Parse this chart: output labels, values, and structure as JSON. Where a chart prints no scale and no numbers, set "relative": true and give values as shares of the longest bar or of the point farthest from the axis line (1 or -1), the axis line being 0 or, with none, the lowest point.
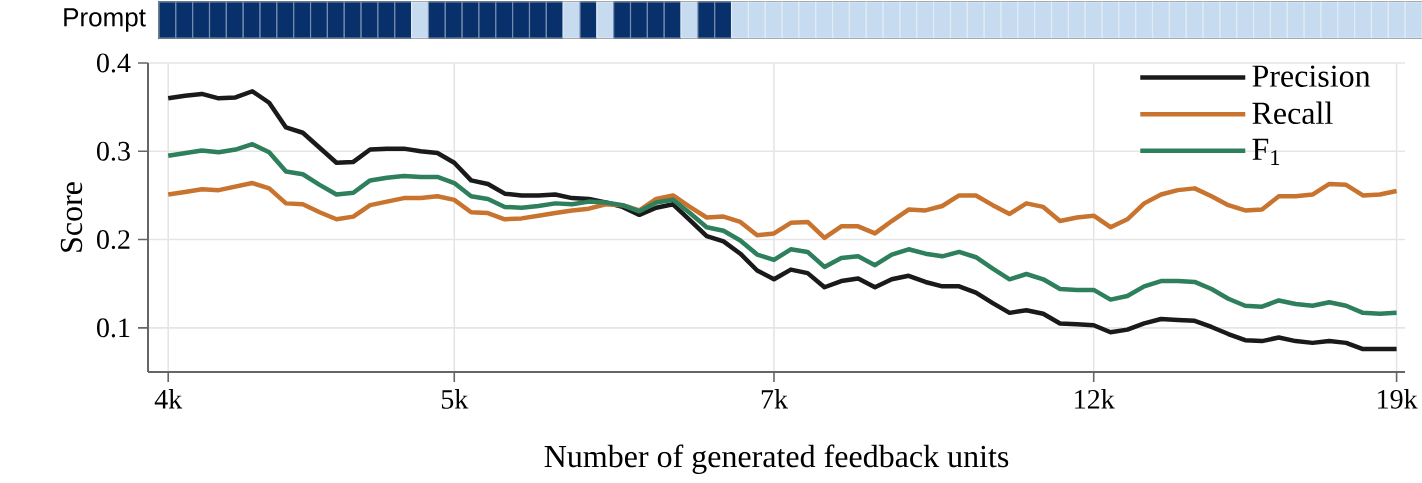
{
  "chart_data": [
    {
      "type": "bar",
      "relative": true,
      "ylabel": "Prompt",
      "categories": [
        null,
        null,
        null,
        null,
        null,
        null,
        null,
        null,
        null,
        null,
        null,
        null,
        null,
        null,
        null,
        null,
        null,
        null,
        null,
        null,
        null,
        null,
        null,
        null,
        null,
        null,
        null,
        null,
        null,
        null,
        null,
        null,
        null,
        null,
        null,
        null,
        null,
        null,
        null,
        null,
        null,
        null,
        null,
        null,
        null,
        null,
        null,
        null,
        null,
        null,
        null,
        null,
        null,
        null,
        null,
        null,
        null,
        null,
        null,
        null,
        null,
        null,
        null,
        null,
        null,
        null,
        null,
        null,
        null,
        null,
        null,
        null,
        null,
        null,
        null
      ],
      "values": [
        1,
        1,
        1,
        1,
        1,
        1,
        1,
        1,
        1,
        1,
        1,
        1,
        1,
        1,
        1,
        1,
        1,
        1,
        1,
        1,
        1,
        1,
        1,
        1,
        1,
        1,
        1,
        1,
        1,
        1,
        1,
        1,
        1,
        1,
        1,
        1,
        1,
        1,
        1,
        1,
        1,
        1,
        1,
        1,
        1,
        1,
        1,
        1,
        1,
        1,
        1,
        1,
        1,
        1,
        1,
        1,
        1,
        1,
        1,
        1,
        1,
        1,
        1,
        1,
        1,
        1,
        1,
        1,
        1,
        1,
        1,
        1,
        1,
        1,
        1
      ],
      "colors": [
        "#08306b",
        "#08306b",
        "#08306b",
        "#08306b",
        "#08306b",
        "#08306b",
        "#08306b",
        "#08306b",
        "#08306b",
        "#08306b",
        "#08306b",
        "#08306b",
        "#08306b",
        "#08306b",
        "#08306b",
        "#c6dbef",
        "#08306b",
        "#08306b",
        "#08306b",
        "#08306b",
        "#08306b",
        "#08306b",
        "#08306b",
        "#08306b",
        "#c6dbef",
        "#08306b",
        "#c6dbef",
        "#08306b",
        "#08306b",
        "#08306b",
        "#08306b",
        "#c6dbef",
        "#08306b",
        "#08306b",
        "#c6dbef",
        "#c6dbef",
        "#c6dbef",
        "#c6dbef",
        "#c6dbef",
        "#c6dbef",
        "#c6dbef",
        "#c6dbef",
        "#c6dbef",
        "#c6dbef",
        "#c6dbef",
        "#c6dbef",
        "#c6dbef",
        "#c6dbef",
        "#c6dbef",
        "#c6dbef",
        "#c6dbef",
        "#c6dbef",
        "#c6dbef",
        "#c6dbef",
        "#c6dbef",
        "#c6dbef",
        "#c6dbef",
        "#c6dbef",
        "#c6dbef",
        "#c6dbef",
        "#c6dbef",
        "#c6dbef",
        "#c6dbef",
        "#c6dbef",
        "#c6dbef",
        "#c6dbef",
        "#c6dbef",
        "#c6dbef",
        "#c6dbef",
        "#c6dbef",
        "#c6dbef",
        "#c6dbef",
        "#c6dbef",
        "#c6dbef",
        "#c6dbef"
      ]
    },
    {
      "type": "line",
      "xlabel": "Number of generated feedback units",
      "ylabel": "Score",
      "categories": [
        "4k",
        null,
        null,
        null,
        null,
        null,
        null,
        null,
        null,
        null,
        null,
        null,
        null,
        null,
        null,
        null,
        null,
        "5k",
        null,
        null,
        null,
        null,
        null,
        null,
        null,
        null,
        null,
        null,
        null,
        null,
        null,
        null,
        null,
        null,
        null,
        null,
        "7k",
        null,
        null,
        null,
        null,
        null,
        null,
        null,
        null,
        null,
        null,
        null,
        null,
        null,
        null,
        null,
        null,
        null,
        null,
        "12k",
        null,
        null,
        null,
        null,
        null,
        null,
        null,
        null,
        null,
        null,
        null,
        null,
        null,
        null,
        null,
        null,
        null,
        "19k"
      ],
      "ylim": [
        0.05,
        0.4
      ],
      "yticks": [
        0.1,
        0.2,
        0.3,
        0.4
      ],
      "grid": true,
      "legend": "top right",
      "line_style": "solid",
      "marker": "none",
      "series": [
        {
          "name": "Precision",
          "color": "#1a1a1a",
          "values": [
            0.36,
            0.363,
            0.365,
            0.36,
            0.361,
            0.368,
            0.355,
            0.327,
            0.321,
            0.304,
            0.287,
            0.288,
            0.302,
            0.303,
            0.303,
            0.3,
            0.298,
            0.287,
            0.267,
            0.263,
            0.252,
            0.25,
            0.25,
            0.251,
            0.247,
            0.246,
            0.242,
            0.237,
            0.228,
            0.236,
            0.24,
            0.222,
            0.204,
            0.198,
            0.184,
            0.165,
            0.155,
            0.166,
            0.162,
            0.146,
            0.153,
            0.156,
            0.146,
            0.155,
            0.159,
            0.152,
            0.147,
            0.147,
            0.14,
            0.128,
            0.117,
            0.12,
            0.116,
            0.105,
            0.104,
            0.103,
            0.095,
            0.098,
            0.105,
            0.11,
            0.109,
            0.108,
            0.101,
            0.093,
            0.086,
            0.085,
            0.089,
            0.085,
            0.083,
            0.085,
            0.083,
            0.076,
            0.076,
            0.076
          ]
        },
        {
          "name": "Recall",
          "color": "#c8742f",
          "values": [
            0.251,
            0.254,
            0.257,
            0.256,
            0.26,
            0.264,
            0.258,
            0.241,
            0.24,
            0.231,
            0.223,
            0.226,
            0.239,
            0.243,
            0.247,
            0.247,
            0.249,
            0.245,
            0.231,
            0.23,
            0.223,
            0.224,
            0.227,
            0.23,
            0.233,
            0.235,
            0.24,
            0.239,
            0.233,
            0.246,
            0.25,
            0.237,
            0.225,
            0.226,
            0.22,
            0.205,
            0.207,
            0.219,
            0.22,
            0.202,
            0.215,
            0.215,
            0.207,
            0.221,
            0.234,
            0.233,
            0.238,
            0.25,
            0.25,
            0.239,
            0.229,
            0.241,
            0.237,
            0.221,
            0.225,
            0.227,
            0.214,
            0.223,
            0.241,
            0.251,
            0.256,
            0.258,
            0.249,
            0.239,
            0.233,
            0.234,
            0.249,
            0.249,
            0.251,
            0.263,
            0.262,
            0.25,
            0.251,
            0.255
          ]
        },
        {
          "name": "F$_{1}$",
          "color": "#2e7f5c",
          "values": [
            0.295,
            0.298,
            0.301,
            0.299,
            0.302,
            0.308,
            0.299,
            0.277,
            0.274,
            0.262,
            0.251,
            0.253,
            0.267,
            0.27,
            0.272,
            0.271,
            0.271,
            0.264,
            0.249,
            0.246,
            0.237,
            0.236,
            0.238,
            0.241,
            0.24,
            0.243,
            0.242,
            0.239,
            0.232,
            0.242,
            0.245,
            0.23,
            0.214,
            0.21,
            0.199,
            0.183,
            0.177,
            0.189,
            0.186,
            0.169,
            0.179,
            0.181,
            0.171,
            0.183,
            0.189,
            0.184,
            0.181,
            0.186,
            0.18,
            0.167,
            0.155,
            0.161,
            0.155,
            0.144,
            0.143,
            0.143,
            0.132,
            0.136,
            0.147,
            0.153,
            0.153,
            0.152,
            0.144,
            0.133,
            0.125,
            0.124,
            0.131,
            0.127,
            0.125,
            0.129,
            0.125,
            0.117,
            0.116,
            0.117
          ]
        }
      ]
    }
  ]
}
